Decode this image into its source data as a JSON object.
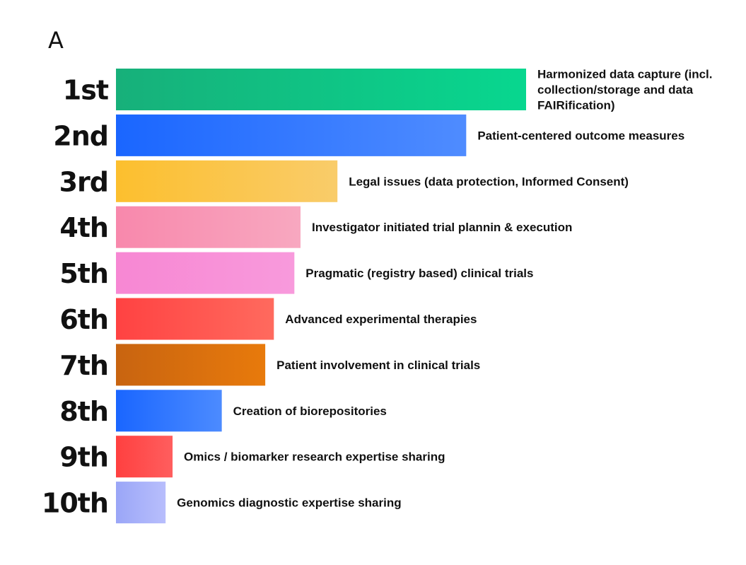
{
  "panel_label": "A",
  "chart_data": {
    "type": "bar",
    "orientation": "horizontal",
    "title": "",
    "xlabel": "",
    "ylabel": "",
    "xlim": [
      0,
      100
    ],
    "grid": false,
    "legend": "none",
    "ranks": [
      "1st",
      "2nd",
      "3rd",
      "4th",
      "5th",
      "6th",
      "7th",
      "8th",
      "9th",
      "10th"
    ],
    "categories": [
      "Harmonized data capture (incl. collection/storage and data FAIRification)",
      "Patient-centered outcome measures",
      "Legal issues (data protection, Informed Consent)",
      "Investigator initiated trial plannin & execution",
      "Pragmatic (registry based) clinical trials",
      "Advanced experimental therapies",
      "Patient involvement in clinical trials",
      "Creation of biorepositories",
      "Omics / biomarker research expertise sharing",
      "Genomics diagnostic expertise sharing"
    ],
    "label_lines": [
      [
        "Harmonized data capture (incl.",
        "collection/storage and data",
        "FAIRification)"
      ],
      [
        "Patient-centered outcome measures"
      ],
      [
        "Legal issues (data protection, Informed Consent)"
      ],
      [
        "Investigator initiated trial plannin & execution"
      ],
      [
        "Pragmatic (registry based) clinical trials"
      ],
      [
        "Advanced experimental therapies"
      ],
      [
        "Patient involvement in clinical trials"
      ],
      [
        "Creation of biorepositories"
      ],
      [
        "Omics / biomarker research expertise sharing"
      ],
      [
        "Genomics diagnostic expertise sharing"
      ]
    ],
    "values": [
      100,
      85.4,
      54.0,
      45.0,
      43.5,
      38.5,
      36.4,
      25.8,
      13.8,
      12.1
    ],
    "colors": [
      [
        "#17b07a",
        "#08d78f"
      ],
      [
        "#1a66ff",
        "#4f8cff"
      ],
      [
        "#fcbf2e",
        "#f9cc6a"
      ],
      [
        "#f888ac",
        "#f8a8c0"
      ],
      [
        "#f787d3",
        "#f89adc"
      ],
      [
        "#ff4242",
        "#ff6a5e"
      ],
      [
        "#c86410",
        "#e87a0c"
      ],
      [
        "#1a66ff",
        "#4c8bff"
      ],
      [
        "#ff4040",
        "#ff5e5e"
      ],
      [
        "#9aa6f7",
        "#b8befc"
      ]
    ]
  }
}
